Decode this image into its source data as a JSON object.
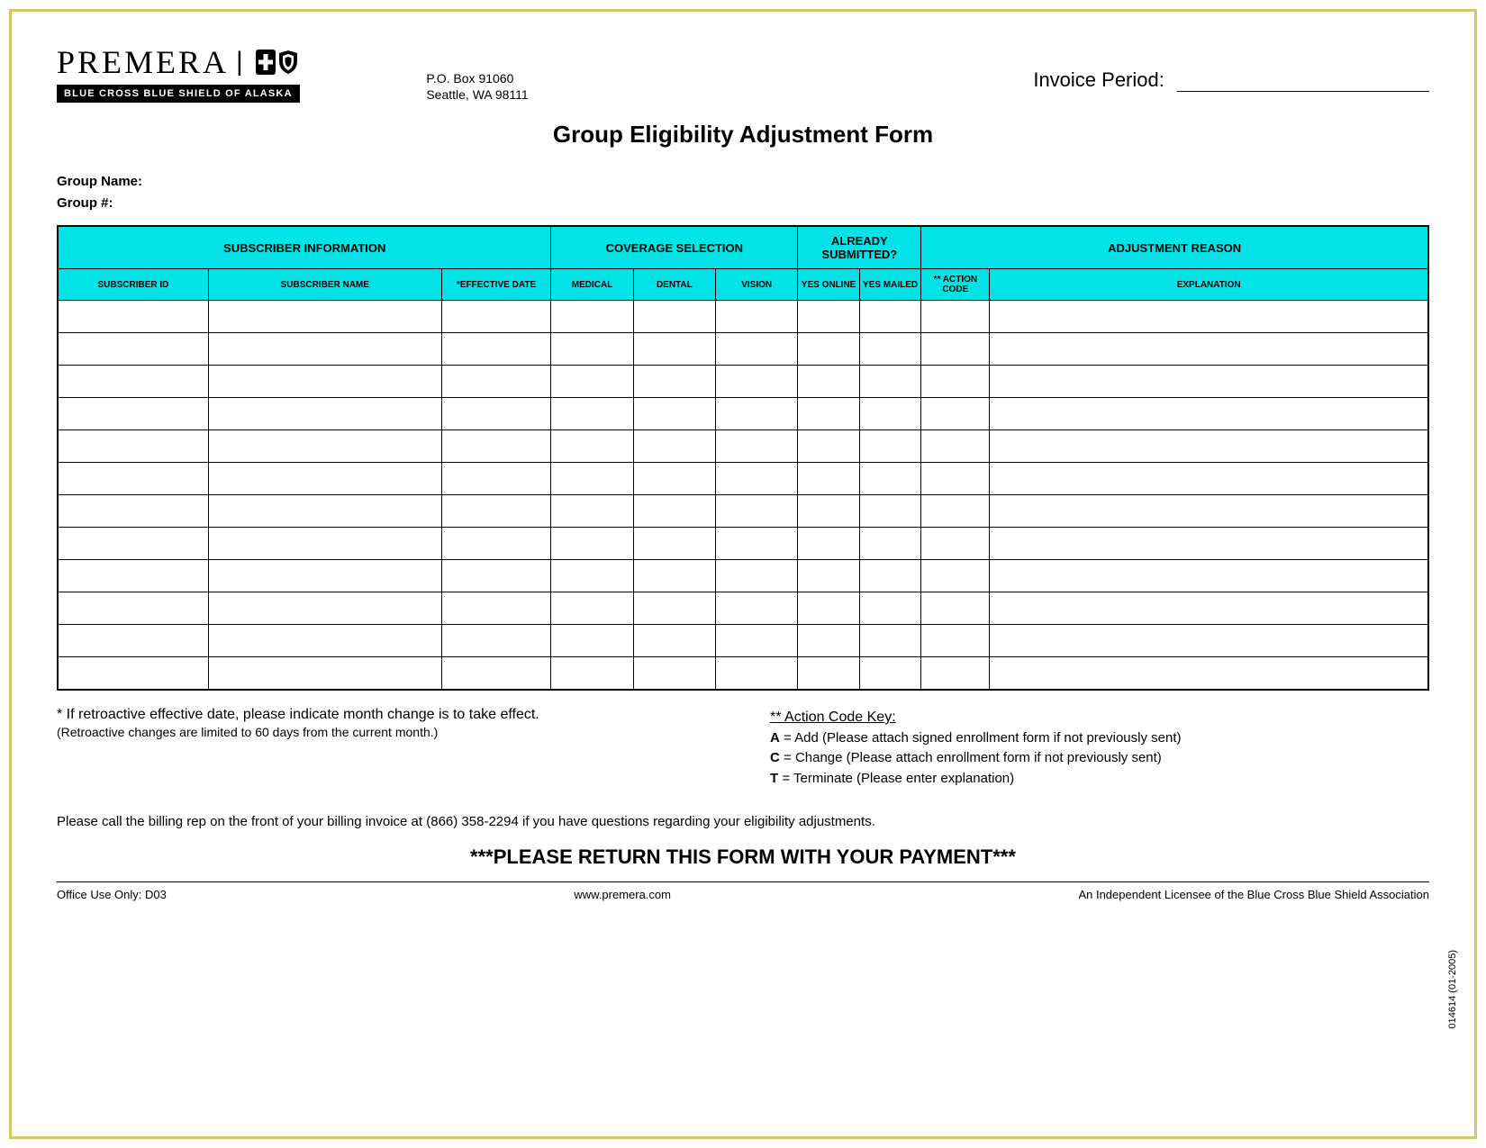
{
  "logo": {
    "brand_text": "PREMERA",
    "tagline": "BLUE CROSS BLUE SHIELD OF ALASKA"
  },
  "address": {
    "line1": "P.O. Box 91060",
    "line2": "Seattle, WA 98111"
  },
  "invoice_period_label": "Invoice Period:",
  "form_title": "Group Eligibility Adjustment Form",
  "group_labels": {
    "name": "Group Name:",
    "number": "Group #:"
  },
  "table": {
    "section_headers": {
      "subscriber_info": "SUBSCRIBER INFORMATION",
      "coverage_selection": "COVERAGE SELECTION",
      "already_submitted": "ALREADY SUBMITTED?",
      "adjustment_reason": "ADJUSTMENT REASON"
    },
    "column_headers": {
      "subscriber_id": "SUBSCRIBER ID",
      "subscriber_name": "SUBSCRIBER NAME",
      "effective_date": "*EFFECTIVE DATE",
      "medical": "MEDICAL",
      "dental": "DENTAL",
      "vision": "VISION",
      "yes_online": "YES ONLINE",
      "yes_mailed": "YES MAILED",
      "action_code": "** ACTION CODE",
      "explanation": "EXPLANATION"
    },
    "header_bg_color": "#00e4e8",
    "border_color": "#000000",
    "row_count": 12,
    "col_widths_pct": [
      11,
      17,
      8,
      6,
      6,
      6,
      4.5,
      4.5,
      5,
      32
    ]
  },
  "notes": {
    "retro_note": "* If retroactive effective date, please indicate month change is to take effect.",
    "retro_sub": "(Retroactive changes are limited to 60 days from the current month.)",
    "action_key_title": "** Action Code Key:",
    "action_a": "A = Add (Please attach signed enrollment form if not previously sent)",
    "action_c": "C = Change (Please attach enrollment form if not previously sent)",
    "action_t": "T = Terminate (Please enter explanation)"
  },
  "billing_note": "Please call the billing rep on the front of your billing invoice at (866) 358-2294 if you have questions regarding your eligibility adjustments.",
  "return_banner": "***PLEASE RETURN THIS FORM WITH YOUR PAYMENT***",
  "footer": {
    "left": "Office Use Only: D03",
    "center": "www.premera.com",
    "right": "An Independent Licensee of the Blue Cross Blue Shield Association"
  },
  "side_code": "014614 (01-2005)",
  "colors": {
    "page_border": "#d4c968",
    "header_cyan": "#00e4e8",
    "text": "#000000",
    "background": "#ffffff"
  }
}
